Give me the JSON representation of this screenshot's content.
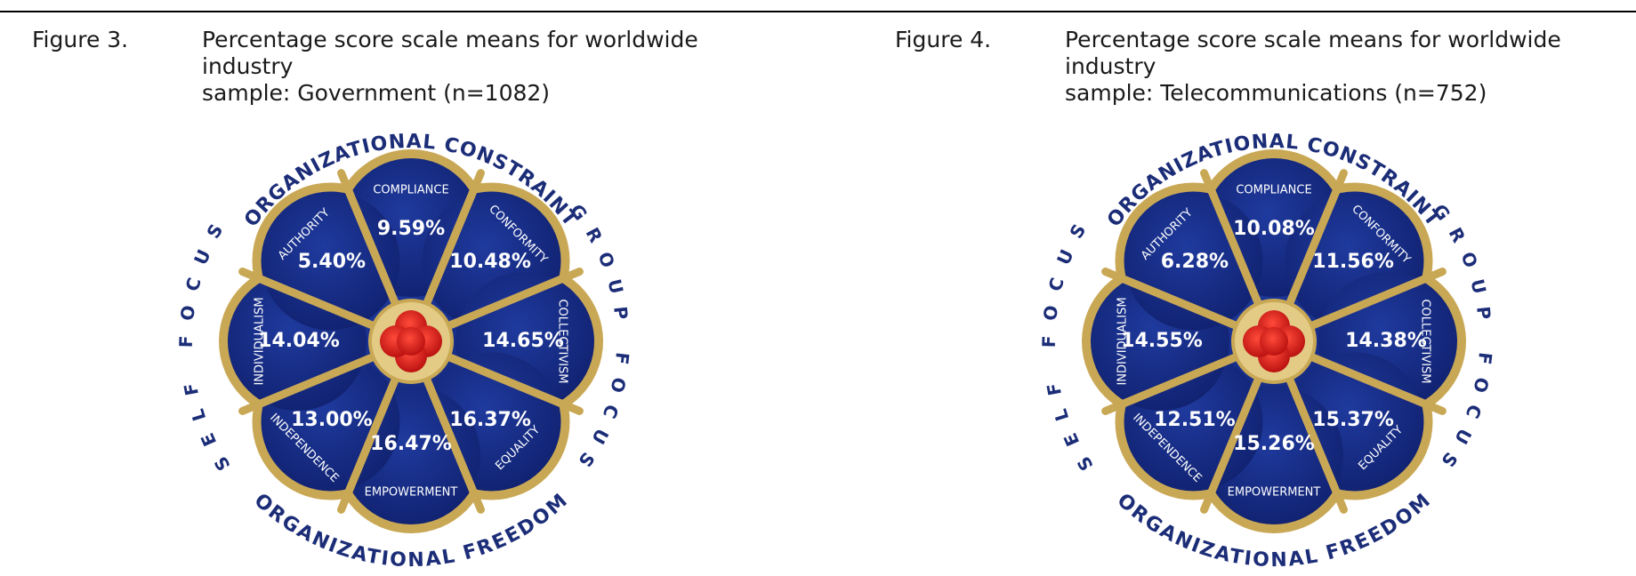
{
  "colors": {
    "petal_fill": "#1f3a9e",
    "petal_dark": "#0f1f6b",
    "rim_gold": "#c9a855",
    "rim_gold_light": "#e3cb86",
    "center_red": "#e01818",
    "title_navy": "#1c2d78",
    "value_text": "#ffffff"
  },
  "figures": [
    {
      "label": "Figure 3.",
      "caption": "Percentage score scale means for worldwide industry\nsample: Government (n=1082)"
    },
    {
      "label": "Figure 4.",
      "caption": "Percentage score scale means for worldwide industry\nsample: Telecommunications (n=752)"
    }
  ],
  "chart_data": [
    {
      "type": "radial petal chart",
      "outer_labels": {
        "top": "ORGANIZATIONAL CONSTRAINT",
        "bottom": "ORGANIZATIONAL FREEDOM",
        "left": "SELF FOCUS",
        "right": "GROUP FOCUS"
      },
      "categories": [
        "COMPLIANCE",
        "CONFORMITY",
        "COLLECTIVISM",
        "EQUALITY",
        "EMPOWERMENT",
        "INDEPENDENCE",
        "INDIVIDUALISM",
        "AUTHORITY"
      ],
      "values": [
        9.59,
        10.48,
        14.65,
        16.37,
        16.47,
        13.0,
        14.04,
        5.4
      ],
      "value_labels": [
        "9.59%",
        "10.48%",
        "14.65%",
        "16.37%",
        "16.47%",
        "13.00%",
        "14.04%",
        "5.40%"
      ]
    },
    {
      "type": "radial petal chart",
      "outer_labels": {
        "top": "ORGANIZATIONAL CONSTRAINT",
        "bottom": "ORGANIZATIONAL FREEDOM",
        "left": "SELF FOCUS",
        "right": "GROUP FOCUS"
      },
      "categories": [
        "COMPLIANCE",
        "CONFORMITY",
        "COLLECTIVISM",
        "EQUALITY",
        "EMPOWERMENT",
        "INDEPENDENCE",
        "INDIVIDUALISM",
        "AUTHORITY"
      ],
      "values": [
        10.08,
        11.56,
        14.38,
        15.37,
        15.26,
        12.51,
        14.55,
        6.28
      ],
      "value_labels": [
        "10.08%",
        "11.56%",
        "14.38%",
        "15.37%",
        "15.26%",
        "12.51%",
        "14.55%",
        "6.28%"
      ]
    }
  ]
}
